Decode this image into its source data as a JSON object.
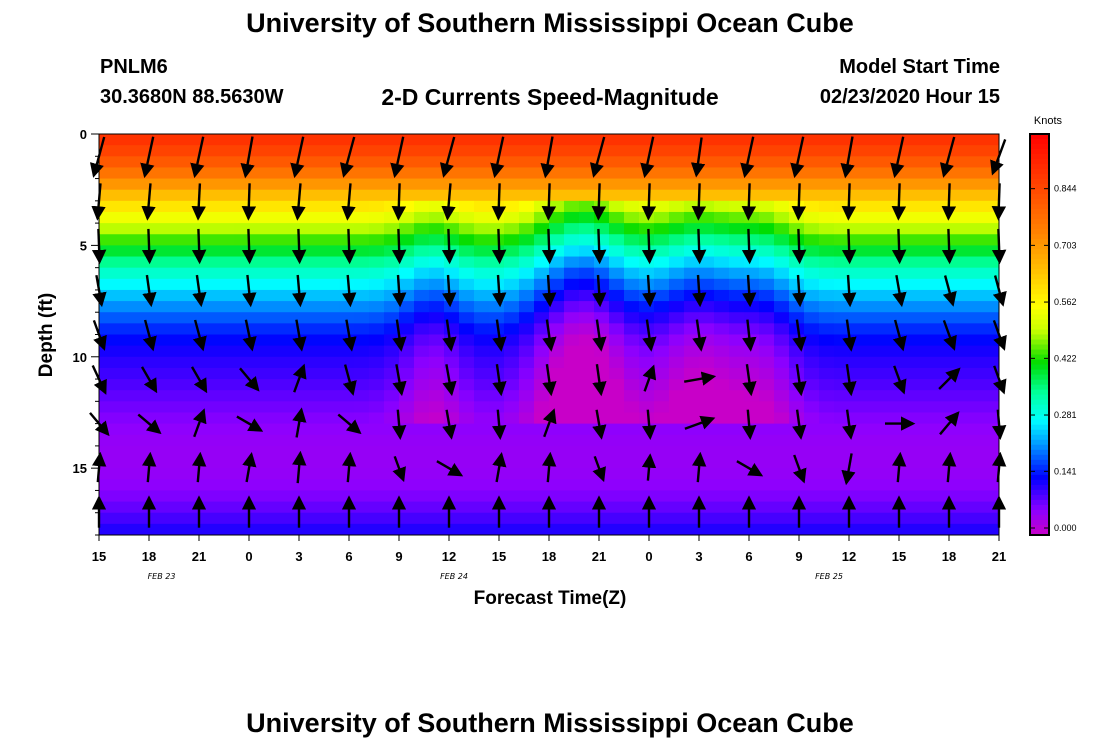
{
  "header": {
    "title": "University of Southern Mississippi Ocean Cube",
    "station": "PNLM6",
    "coordinates": "30.3680N 88.5630W",
    "chart_title": "2-D Currents Speed-Magnitude",
    "start_label": "Model Start Time",
    "start_value": "02/23/2020 Hour 15"
  },
  "footer": {
    "title": "University of Southern Mississippi Ocean Cube"
  },
  "chart_data": {
    "type": "heatmap",
    "title": "2-D Currents Speed-Magnitude",
    "xlabel": "Forecast Time(Z)",
    "ylabel": "Depth (ft)",
    "x_hours": [
      0,
      54
    ],
    "x_tick_labels": [
      "15",
      "18",
      "21",
      "0",
      "3",
      "6",
      "9",
      "12",
      "15",
      "18",
      "21",
      "0",
      "3",
      "6",
      "9",
      "12",
      "15",
      "18",
      "21"
    ],
    "date_labels": [
      {
        "label": "FEB  23",
        "hour": 3.75
      },
      {
        "label": "FEB  24",
        "hour": 21.3
      },
      {
        "label": "FEB  25",
        "hour": 43.8
      }
    ],
    "depth_range": [
      0,
      18
    ],
    "y_ticks": [
      0,
      5,
      10,
      15
    ],
    "colorbar": {
      "units": "Knots",
      "ticks": [
        "0.000",
        "0.141",
        "0.281",
        "0.422",
        "0.562",
        "0.703",
        "0.844"
      ],
      "range": [
        0,
        0.98
      ]
    },
    "speed_bands": {
      "depths_ft": [
        0,
        1,
        2,
        3,
        4,
        5,
        6,
        7,
        8,
        9,
        10,
        11,
        12,
        13,
        14,
        15,
        16,
        17,
        18
      ],
      "base_knots": [
        0.9,
        0.84,
        0.74,
        0.62,
        0.52,
        0.42,
        0.33,
        0.26,
        0.2,
        0.15,
        0.12,
        0.1,
        0.08,
        0.06,
        0.05,
        0.05,
        0.06,
        0.09,
        0.13
      ],
      "channels": [
        {
          "hour": 29,
          "width": 3,
          "shift": 0.14
        },
        {
          "hour": 36,
          "width": 3,
          "shift": 0.1
        },
        {
          "hour": 20,
          "width": 2,
          "shift": 0.06
        },
        {
          "hour": 40,
          "width": 2,
          "shift": 0.06
        }
      ]
    },
    "arrow_rows_depth_ft": [
      1,
      3,
      5,
      7,
      9,
      11,
      13,
      15,
      17
    ],
    "arrow_columns_hours": [
      0,
      3,
      6,
      9,
      12,
      15,
      18,
      21,
      24,
      27,
      30,
      33,
      36,
      39,
      42,
      45,
      48,
      51,
      54
    ],
    "arrow_directions_deg": [
      [
        -165,
        -168,
        -168,
        -170,
        -168,
        -165,
        -168,
        -165,
        -168,
        -170,
        -165,
        -168,
        -172,
        -168,
        -168,
        -170,
        -168,
        -165,
        -160
      ],
      [
        -175,
        -175,
        -177,
        -178,
        -175,
        -175,
        -178,
        -175,
        -178,
        -178,
        -178,
        -178,
        -178,
        -178,
        -178,
        -178,
        -178,
        -178,
        -178
      ],
      [
        178,
        178,
        178,
        178,
        178,
        178,
        178,
        178,
        178,
        178,
        178,
        178,
        178,
        178,
        178,
        178,
        178,
        178,
        178
      ],
      [
        170,
        172,
        172,
        174,
        175,
        175,
        176,
        176,
        176,
        176,
        176,
        176,
        176,
        176,
        176,
        176,
        170,
        165,
        165
      ],
      [
        160,
        165,
        165,
        168,
        170,
        170,
        172,
        172,
        172,
        172,
        172,
        172,
        172,
        174,
        172,
        172,
        165,
        160,
        160
      ],
      [
        155,
        150,
        150,
        140,
        20,
        165,
        170,
        170,
        172,
        172,
        172,
        20,
        80,
        172,
        172,
        172,
        160,
        45,
        160
      ],
      [
        140,
        130,
        20,
        120,
        10,
        130,
        175,
        170,
        175,
        20,
        170,
        175,
        70,
        175,
        172,
        172,
        90,
        40,
        175
      ],
      [
        5,
        5,
        5,
        10,
        5,
        5,
        160,
        120,
        10,
        5,
        160,
        5,
        5,
        120,
        160,
        190,
        5,
        5,
        5
      ],
      [
        0,
        0,
        0,
        0,
        0,
        0,
        0,
        0,
        0,
        0,
        0,
        0,
        0,
        0,
        0,
        0,
        0,
        0,
        0
      ]
    ],
    "arrow_lengths_px": [
      [
        40,
        40,
        40,
        40,
        40,
        40,
        40,
        40,
        40,
        40,
        40,
        40,
        38,
        40,
        40,
        40,
        40,
        40,
        36
      ],
      [
        35,
        35,
        35,
        35,
        35,
        35,
        35,
        35,
        35,
        35,
        35,
        35,
        35,
        35,
        35,
        35,
        35,
        35,
        35
      ],
      [
        33,
        33,
        33,
        33,
        33,
        33,
        33,
        33,
        33,
        33,
        33,
        33,
        33,
        33,
        33,
        33,
        33,
        33,
        33
      ],
      [
        30,
        30,
        30,
        30,
        30,
        30,
        30,
        30,
        30,
        30,
        30,
        30,
        30,
        30,
        30,
        30,
        30,
        30,
        30
      ],
      [
        30,
        30,
        30,
        30,
        30,
        30,
        30,
        30,
        30,
        30,
        30,
        30,
        30,
        30,
        30,
        30,
        30,
        30,
        30
      ],
      [
        30,
        28,
        28,
        28,
        28,
        30,
        30,
        30,
        30,
        30,
        30,
        26,
        30,
        30,
        30,
        30,
        28,
        28,
        28
      ],
      [
        28,
        28,
        28,
        28,
        28,
        28,
        28,
        28,
        28,
        28,
        28,
        28,
        30,
        28,
        28,
        28,
        28,
        28,
        28
      ],
      [
        28,
        28,
        28,
        28,
        30,
        28,
        25,
        28,
        28,
        28,
        25,
        25,
        28,
        28,
        28,
        30,
        28,
        28,
        28
      ],
      [
        30,
        30,
        30,
        30,
        30,
        30,
        30,
        30,
        30,
        30,
        30,
        30,
        30,
        30,
        30,
        30,
        30,
        30,
        30
      ]
    ]
  }
}
